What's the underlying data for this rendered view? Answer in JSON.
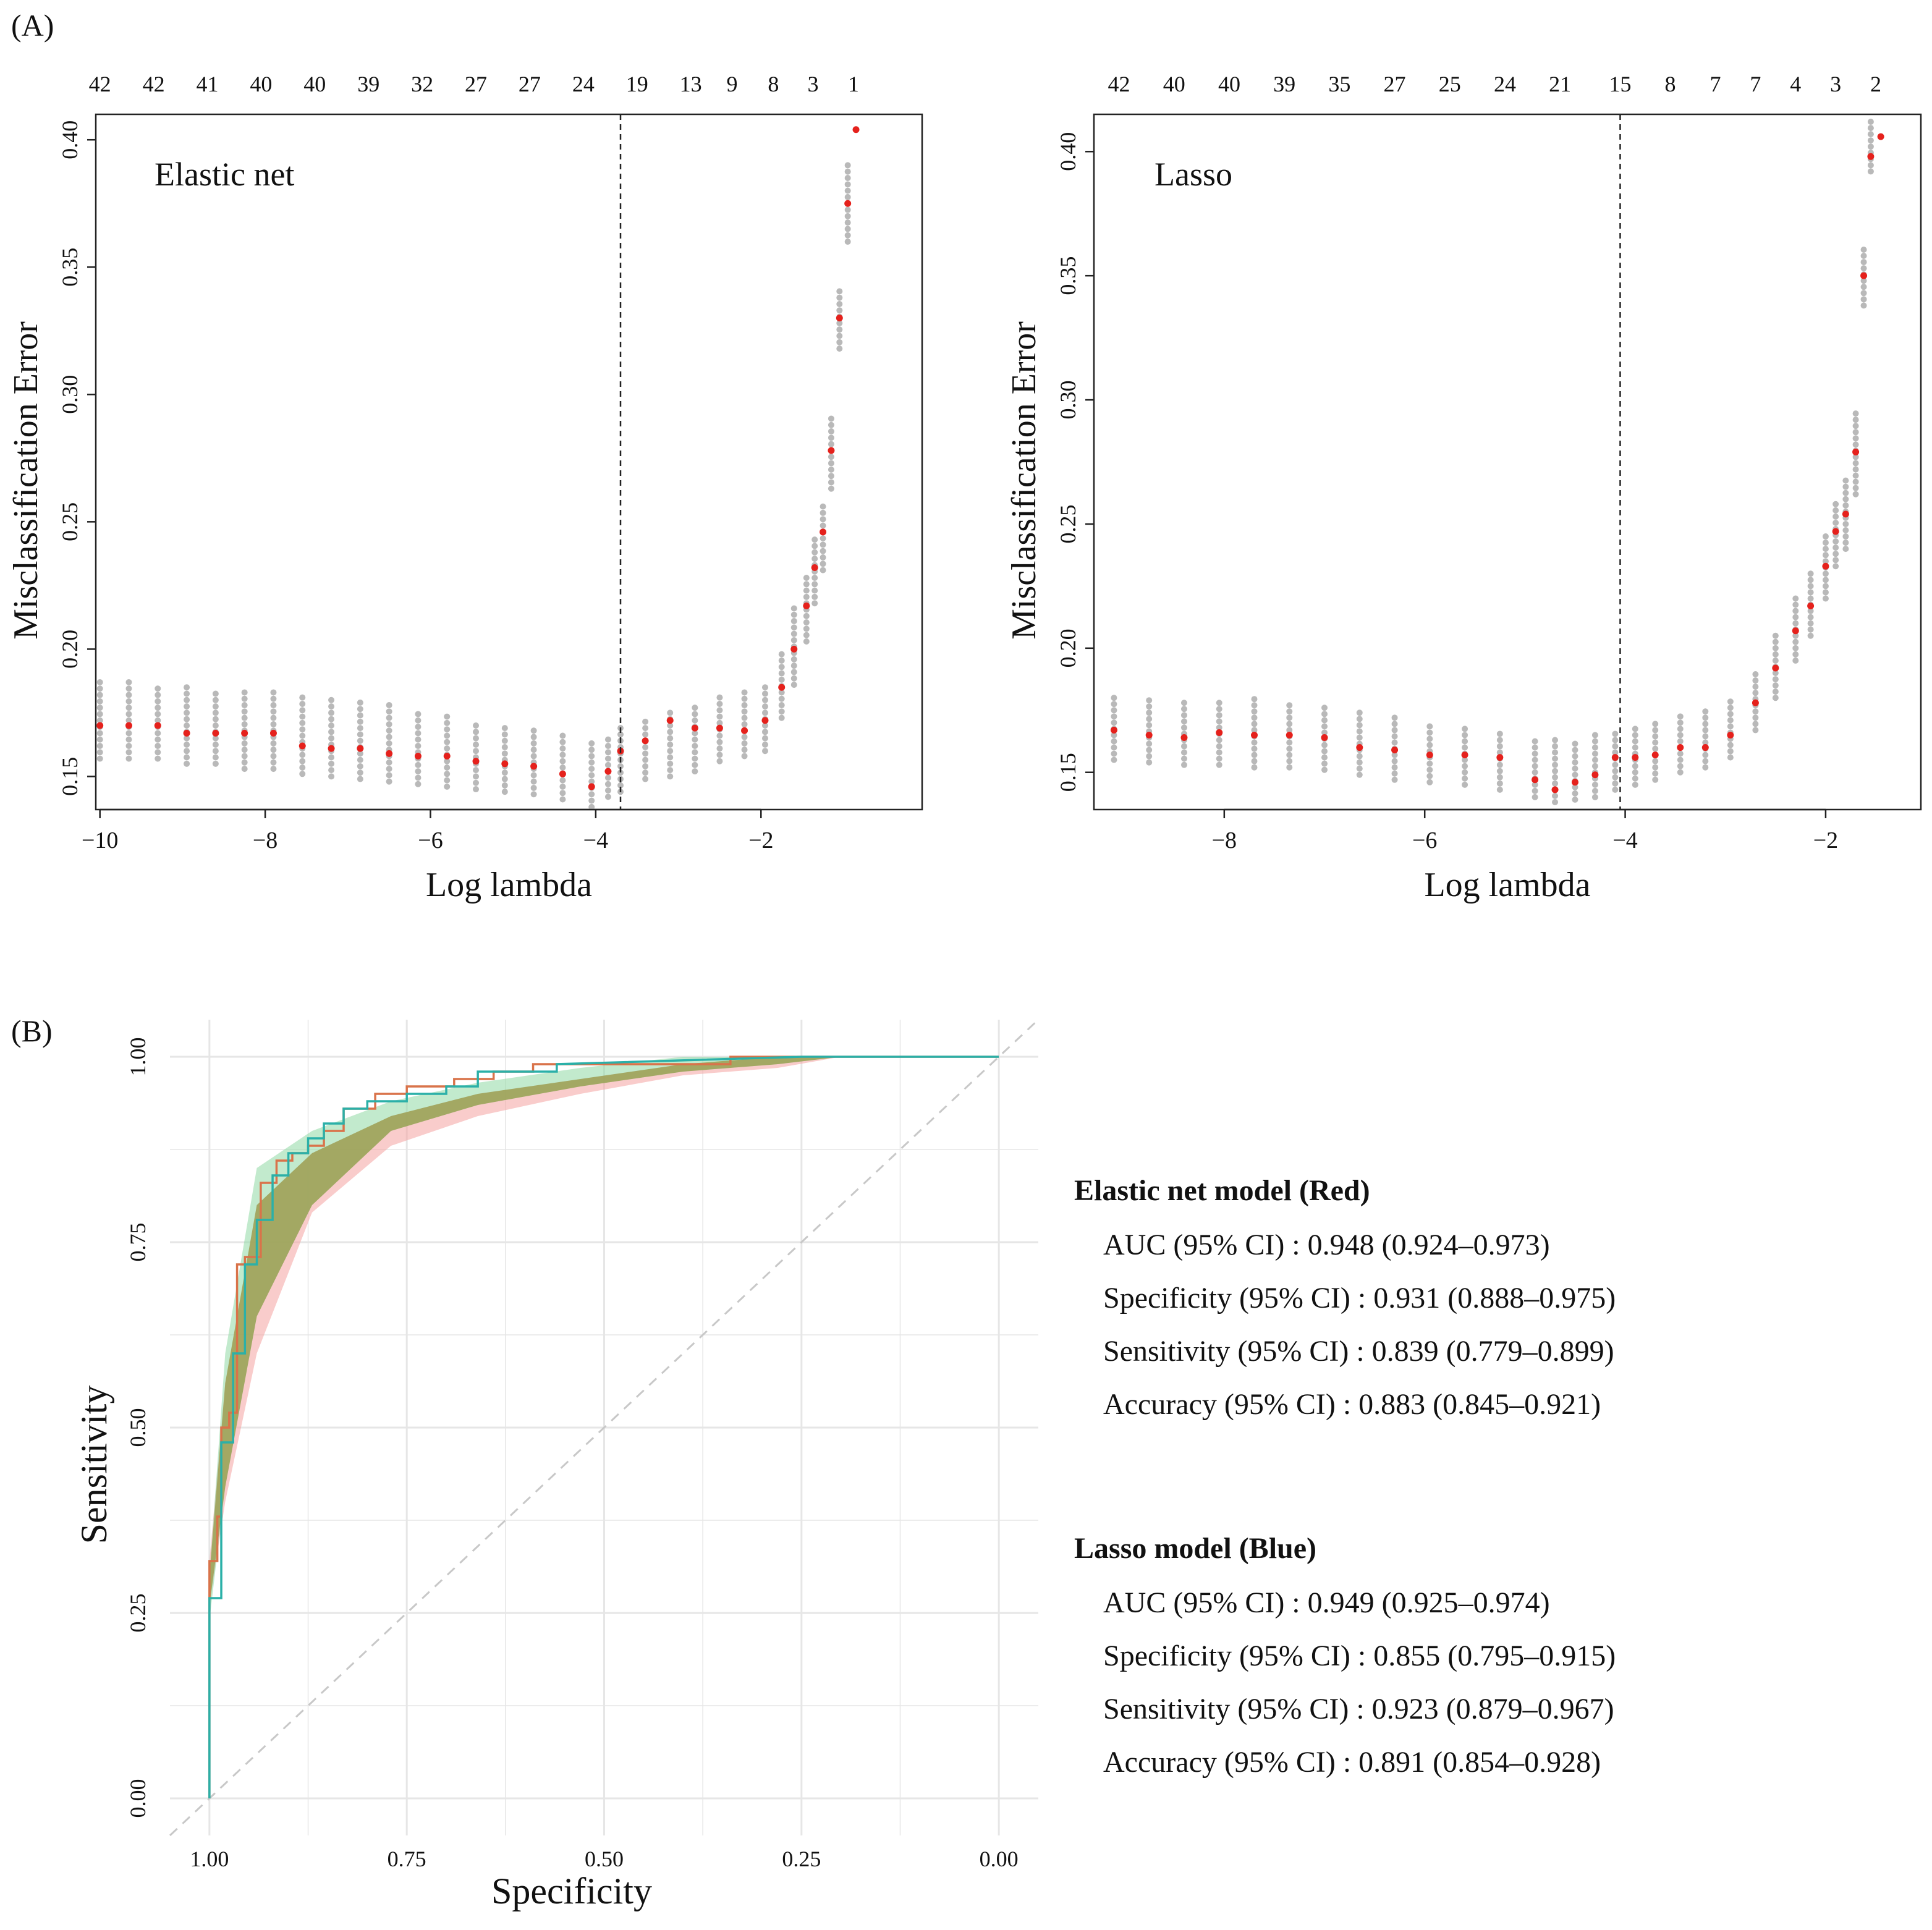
{
  "panel_labels": {
    "a": "(A)",
    "b": "(B)"
  },
  "colors": {
    "cv_point": "#e5211c",
    "cv_band": "#b9b9b9",
    "vline": "#222222",
    "roc_red": "#d9734a",
    "roc_blue": "#2bb0a8",
    "ci_red": "#f4a3a0",
    "ci_blue": "#8fd9a4",
    "ci_overlap": "#9a9a48",
    "grid": "#e6e6e6",
    "diagonal": "#c8c8c8"
  },
  "chart_data": [
    {
      "id": "elastic-net",
      "type": "scatter",
      "title": "Elastic net",
      "xlabel": "Log lambda",
      "ylabel": "Misclassification Error",
      "xlim": [
        -10.05,
        -0.05
      ],
      "ylim": [
        0.137,
        0.41
      ],
      "xticks": [
        "-10",
        "-8",
        "-6",
        "-4",
        "-2"
      ],
      "yticks": [
        "0.15",
        "0.20",
        "0.25",
        "0.30",
        "0.35",
        "0.40"
      ],
      "top_axis_label_positions": [
        -10,
        -9.35,
        -8.7,
        -8.05,
        -7.4,
        -6.75,
        -6.1,
        -5.45,
        -4.8,
        -4.15,
        -3.5,
        -2.85,
        -2.35,
        -1.85,
        -1.37,
        -0.88
      ],
      "top_axis_labels": [
        "42",
        "42",
        "41",
        "40",
        "40",
        "39",
        "32",
        "27",
        "27",
        "24",
        "19",
        "13",
        "9",
        "8",
        "3",
        "1"
      ],
      "vline_x": -3.7,
      "series": [
        {
          "name": "CV error",
          "x": [
            -10,
            -9.65,
            -9.3,
            -8.95,
            -8.6,
            -8.25,
            -7.9,
            -7.55,
            -7.2,
            -6.85,
            -6.5,
            -6.15,
            -5.8,
            -5.45,
            -5.1,
            -4.75,
            -4.4,
            -4.05,
            -3.85,
            -3.7,
            -3.4,
            -3.1,
            -2.8,
            -2.5,
            -2.2,
            -1.95,
            -1.75,
            -1.6,
            -1.45,
            -1.35,
            -1.25,
            -1.15,
            -1.05,
            -0.95,
            -0.85
          ],
          "y": [
            0.17,
            0.17,
            0.17,
            0.167,
            0.167,
            0.167,
            0.167,
            0.162,
            0.161,
            0.161,
            0.159,
            0.158,
            0.158,
            0.156,
            0.155,
            0.154,
            0.151,
            0.146,
            0.152,
            0.16,
            0.164,
            0.172,
            0.169,
            0.169,
            0.168,
            0.172,
            0.185,
            0.2,
            0.217,
            0.232,
            0.246,
            0.278,
            0.33,
            0.375,
            0.404
          ],
          "lower": [
            0.157,
            0.157,
            0.157,
            0.155,
            0.155,
            0.153,
            0.153,
            0.151,
            0.15,
            0.149,
            0.148,
            0.147,
            0.146,
            0.145,
            0.144,
            0.143,
            0.141,
            0.138,
            0.142,
            0.144,
            0.149,
            0.15,
            0.152,
            0.156,
            0.158,
            0.16,
            0.173,
            0.186,
            0.203,
            0.218,
            0.231,
            0.263,
            0.318,
            0.36,
            0.404
          ],
          "upper": [
            0.187,
            0.187,
            0.186,
            0.185,
            0.184,
            0.184,
            0.183,
            0.182,
            0.18,
            0.179,
            0.178,
            0.176,
            0.174,
            0.172,
            0.17,
            0.168,
            0.166,
            0.164,
            0.166,
            0.169,
            0.172,
            0.175,
            0.178,
            0.181,
            0.183,
            0.186,
            0.2,
            0.216,
            0.23,
            0.243,
            0.258,
            0.292,
            0.342,
            0.39,
            0.404
          ]
        }
      ]
    },
    {
      "id": "lasso",
      "type": "scatter",
      "title": "Lasso",
      "xlabel": "Log lambda",
      "ylabel": "Misclassification Error",
      "xlim": [
        -9.3,
        -1.05
      ],
      "ylim": [
        0.135,
        0.415
      ],
      "xticks": [
        "-8",
        "-6",
        "-4",
        "-2"
      ],
      "yticks": [
        "0.15",
        "0.20",
        "0.25",
        "0.30",
        "0.35",
        "0.40"
      ],
      "top_axis_label_positions": [
        -9.05,
        -8.5,
        -7.95,
        -7.4,
        -6.85,
        -6.3,
        -5.75,
        -5.2,
        -4.65,
        -4.05,
        -3.55,
        -3.1,
        -2.7,
        -2.3,
        -1.9,
        -1.5
      ],
      "top_axis_labels": [
        "42",
        "40",
        "40",
        "39",
        "35",
        "27",
        "25",
        "24",
        "21",
        "15",
        "8",
        "7",
        "7",
        "4",
        "3",
        "2"
      ],
      "vline_x": -4.05,
      "series": [
        {
          "name": "CV error",
          "x": [
            -9.1,
            -8.75,
            -8.4,
            -8.05,
            -7.7,
            -7.35,
            -7.0,
            -6.65,
            -6.3,
            -5.95,
            -5.6,
            -5.25,
            -4.9,
            -4.7,
            -4.5,
            -4.3,
            -4.1,
            -3.9,
            -3.7,
            -3.45,
            -3.2,
            -2.95,
            -2.7,
            -2.5,
            -2.3,
            -2.15,
            -2.0,
            -1.9,
            -1.8,
            -1.7,
            -1.62,
            -1.55,
            -1.45
          ],
          "y": [
            0.167,
            0.165,
            0.164,
            0.166,
            0.165,
            0.165,
            0.164,
            0.16,
            0.159,
            0.157,
            0.157,
            0.156,
            0.147,
            0.143,
            0.146,
            0.149,
            0.156,
            0.156,
            0.157,
            0.16,
            0.16,
            0.165,
            0.178,
            0.192,
            0.207,
            0.217,
            0.233,
            0.247,
            0.254,
            0.279,
            0.35,
            0.398,
            0.406
          ],
          "lower": [
            0.155,
            0.154,
            0.153,
            0.153,
            0.152,
            0.152,
            0.151,
            0.149,
            0.147,
            0.146,
            0.145,
            0.143,
            0.14,
            0.138,
            0.139,
            0.14,
            0.143,
            0.145,
            0.147,
            0.15,
            0.152,
            0.156,
            0.167,
            0.18,
            0.195,
            0.205,
            0.22,
            0.233,
            0.24,
            0.262,
            0.338,
            0.392,
            0.406
          ],
          "upper": [
            0.182,
            0.181,
            0.18,
            0.18,
            0.18,
            0.178,
            0.177,
            0.175,
            0.172,
            0.17,
            0.168,
            0.166,
            0.163,
            0.163,
            0.163,
            0.165,
            0.167,
            0.169,
            0.17,
            0.173,
            0.175,
            0.18,
            0.19,
            0.205,
            0.22,
            0.23,
            0.246,
            0.26,
            0.268,
            0.296,
            0.362,
            0.412,
            0.406
          ]
        }
      ]
    },
    {
      "id": "roc",
      "type": "line",
      "title": "",
      "xlabel": "Specificity",
      "ylabel": "Sensitivity",
      "xlim": [
        1.05,
        -0.05
      ],
      "ylim": [
        -0.05,
        1.05
      ],
      "xticks": [
        1.0,
        0.75,
        0.5,
        0.25,
        0.0
      ],
      "xtick_labels": [
        "1.00",
        "0.75",
        "0.50",
        "0.25",
        "0.00"
      ],
      "yticks": [
        0.0,
        0.25,
        0.5,
        0.75,
        1.0
      ],
      "ytick_labels": [
        "0.00",
        "0.25",
        "0.50",
        "0.75",
        "1.00"
      ],
      "series": [
        {
          "name": "Elastic net model (Red)",
          "specificity": [
            1.0,
            1.0,
            0.99,
            0.99,
            0.985,
            0.985,
            0.975,
            0.975,
            0.965,
            0.965,
            0.955,
            0.955,
            0.935,
            0.935,
            0.915,
            0.915,
            0.895,
            0.895,
            0.875,
            0.875,
            0.855,
            0.855,
            0.83,
            0.83,
            0.79,
            0.79,
            0.75,
            0.75,
            0.69,
            0.69,
            0.64,
            0.64,
            0.59,
            0.59,
            0.34,
            0.34,
            0.25,
            0.0
          ],
          "sensitivity": [
            0.0,
            0.32,
            0.32,
            0.38,
            0.38,
            0.5,
            0.5,
            0.52,
            0.52,
            0.72,
            0.72,
            0.73,
            0.73,
            0.83,
            0.83,
            0.86,
            0.86,
            0.87,
            0.87,
            0.88,
            0.88,
            0.9,
            0.9,
            0.93,
            0.93,
            0.95,
            0.95,
            0.96,
            0.96,
            0.97,
            0.97,
            0.98,
            0.98,
            0.99,
            0.99,
            1.0,
            1.0,
            1.0
          ],
          "ci_upper": [
            0.32,
            0.56,
            0.8,
            0.87,
            0.92,
            0.95,
            0.97,
            0.99,
            1.0,
            1.0,
            1.0
          ],
          "ci_lower": [
            0.26,
            0.4,
            0.6,
            0.79,
            0.88,
            0.92,
            0.95,
            0.975,
            0.985,
            1.0,
            1.0
          ],
          "ci_spec": [
            1.0,
            0.98,
            0.94,
            0.87,
            0.77,
            0.66,
            0.53,
            0.4,
            0.28,
            0.2,
            0.0
          ]
        },
        {
          "name": "Lasso model (Blue)",
          "specificity": [
            1.0,
            1.0,
            0.985,
            0.985,
            0.97,
            0.97,
            0.955,
            0.955,
            0.94,
            0.94,
            0.92,
            0.92,
            0.9,
            0.9,
            0.875,
            0.875,
            0.855,
            0.855,
            0.83,
            0.83,
            0.8,
            0.8,
            0.75,
            0.75,
            0.7,
            0.7,
            0.66,
            0.66,
            0.56,
            0.56,
            0.25,
            0.0
          ],
          "sensitivity": [
            0.0,
            0.27,
            0.27,
            0.48,
            0.48,
            0.6,
            0.6,
            0.72,
            0.72,
            0.78,
            0.78,
            0.84,
            0.84,
            0.87,
            0.87,
            0.89,
            0.89,
            0.91,
            0.91,
            0.93,
            0.93,
            0.94,
            0.94,
            0.95,
            0.95,
            0.96,
            0.96,
            0.98,
            0.98,
            0.99,
            1.0,
            1.0
          ],
          "ci_upper": [
            0.3,
            0.6,
            0.85,
            0.9,
            0.94,
            0.965,
            0.985,
            1.0,
            1.0,
            1.0,
            1.0
          ],
          "ci_lower": [
            0.24,
            0.42,
            0.65,
            0.8,
            0.9,
            0.935,
            0.96,
            0.98,
            0.99,
            1.0,
            1.0
          ],
          "ci_spec": [
            1.0,
            0.98,
            0.94,
            0.87,
            0.77,
            0.66,
            0.53,
            0.4,
            0.28,
            0.2,
            0.0
          ]
        }
      ]
    }
  ],
  "stats": [
    {
      "heading": "Elastic net model (Red)",
      "lines": [
        "AUC (95% CI) : 0.948 (0.924–0.973)",
        "Specificity (95% CI) : 0.931 (0.888–0.975)",
        "Sensitivity (95% CI) : 0.839 (0.779–0.899)",
        "Accuracy (95% CI) : 0.883 (0.845–0.921)"
      ]
    },
    {
      "heading": "Lasso model (Blue)",
      "lines": [
        "AUC (95% CI) : 0.949 (0.925–0.974)",
        "Specificity (95% CI) : 0.855 (0.795–0.915)",
        "Sensitivity (95% CI) : 0.923 (0.879–0.967)",
        "Accuracy (95% CI) : 0.891 (0.854–0.928)"
      ]
    }
  ]
}
